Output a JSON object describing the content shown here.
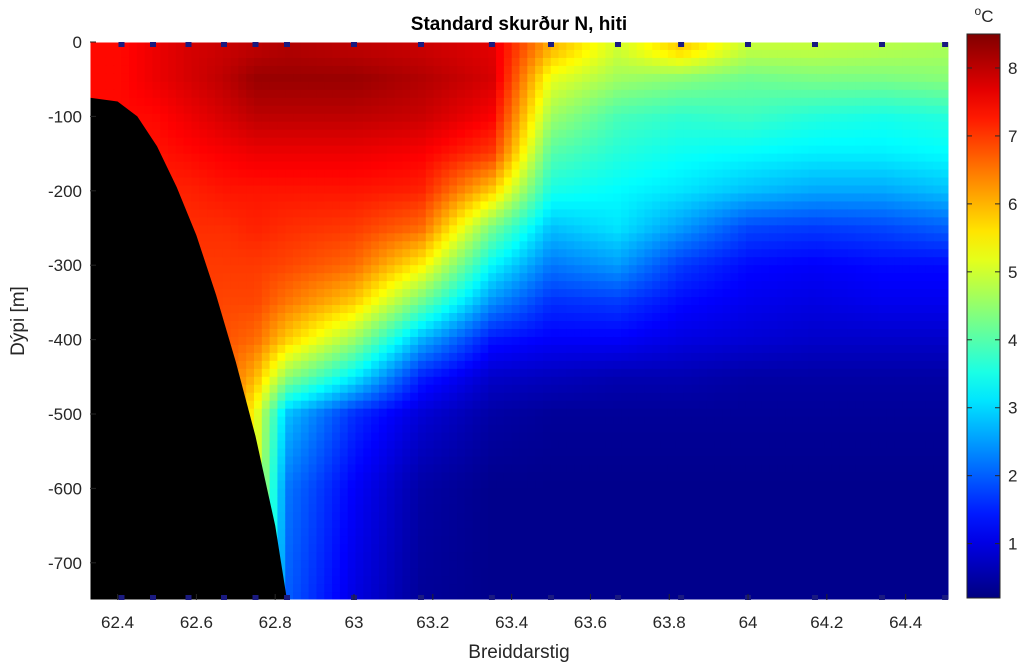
{
  "chart_data": {
    "type": "heatmap",
    "title": "Standard skurður N, hiti",
    "xlabel": "Breiddarstig",
    "ylabel": "Dýpi [m]",
    "colorbar_label": "°C",
    "xlim": [
      62.33,
      64.51
    ],
    "ylim": [
      -750,
      0
    ],
    "clim": [
      0.2,
      8.5
    ],
    "colormap": "jet",
    "x_ticks": [
      62.4,
      62.6,
      62.8,
      63,
      63.2,
      63.4,
      63.6,
      63.8,
      64,
      64.2,
      64.4
    ],
    "x_tick_labels": [
      "62.4",
      "62.6",
      "62.8",
      "63",
      "63.2",
      "63.4",
      "63.6",
      "63.8",
      "64",
      "64.2",
      "64.4"
    ],
    "y_ticks": [
      0,
      -100,
      -200,
      -300,
      -400,
      -500,
      -600,
      -700
    ],
    "y_tick_labels": [
      "0",
      "-100",
      "-200",
      "-300",
      "-400",
      "-500",
      "-600",
      "-700"
    ],
    "colorbar_ticks": [
      1,
      2,
      3,
      4,
      5,
      6,
      7,
      8
    ],
    "colorbar_tick_labels": [
      "1",
      "2",
      "3",
      "4",
      "5",
      "6",
      "7",
      "8"
    ],
    "stations_lat": [
      62.33,
      62.41,
      62.49,
      62.58,
      62.67,
      62.75,
      62.83,
      63.0,
      63.17,
      63.35,
      63.5,
      63.67,
      63.83,
      64.0,
      64.17,
      64.34,
      64.5
    ],
    "depths_m": [
      0,
      10,
      50,
      100,
      150,
      200,
      250,
      300,
      350,
      400,
      450,
      500,
      600,
      750
    ],
    "temperature_c": [
      [
        7.4,
        7.4,
        7.6,
        7.8,
        7.9,
        8.0,
        8.1,
        8.0,
        7.9,
        7.7,
        6.0,
        5.0,
        5.8,
        4.9,
        4.9,
        4.8,
        4.7
      ],
      [
        7.4,
        7.4,
        7.6,
        7.8,
        7.9,
        8.0,
        8.1,
        8.0,
        7.9,
        7.7,
        6.0,
        5.0,
        5.8,
        4.9,
        4.9,
        4.8,
        4.7
      ],
      [
        7.4,
        7.4,
        7.6,
        7.8,
        8.0,
        8.3,
        8.3,
        8.3,
        8.1,
        7.8,
        5.2,
        4.6,
        4.4,
        4.2,
        4.3,
        4.3,
        4.4
      ],
      [
        7.4,
        7.4,
        7.4,
        7.6,
        7.8,
        8.0,
        8.0,
        8.0,
        7.9,
        7.5,
        4.6,
        3.9,
        3.7,
        3.8,
        3.6,
        3.5,
        3.6
      ],
      [
        7.4,
        7.4,
        7.3,
        7.4,
        7.5,
        7.6,
        7.6,
        7.6,
        7.5,
        7.0,
        4.0,
        3.6,
        3.4,
        3.3,
        3.2,
        3.2,
        3.3
      ],
      [
        7.4,
        7.4,
        7.2,
        7.2,
        7.3,
        7.3,
        7.3,
        7.3,
        7.2,
        5.8,
        3.5,
        3.3,
        3.1,
        2.8,
        2.6,
        2.6,
        2.8
      ],
      [
        7.4,
        7.4,
        7.1,
        7.1,
        7.1,
        7.2,
        7.1,
        7.0,
        6.6,
        4.3,
        2.8,
        3.1,
        2.5,
        1.8,
        1.7,
        1.8,
        2.0
      ],
      [
        7.4,
        7.4,
        7.1,
        7.0,
        7.0,
        7.0,
        6.9,
        6.6,
        5.5,
        3.3,
        2.2,
        2.5,
        1.7,
        1.3,
        1.2,
        1.3,
        1.3
      ],
      [
        7.4,
        7.4,
        7.1,
        7.0,
        6.9,
        6.9,
        6.5,
        5.8,
        4.2,
        2.4,
        1.6,
        1.7,
        1.3,
        1.1,
        1.0,
        1.1,
        1.1
      ],
      [
        7.4,
        7.4,
        7.1,
        7.0,
        6.8,
        6.6,
        5.8,
        4.6,
        2.7,
        1.4,
        1.2,
        1.2,
        1.0,
        0.9,
        0.8,
        0.8,
        0.8
      ],
      [
        7.4,
        7.4,
        7.1,
        7.0,
        6.7,
        6.0,
        4.5,
        3.2,
        1.5,
        0.8,
        0.7,
        0.6,
        0.6,
        0.5,
        0.5,
        0.5,
        0.5
      ],
      [
        7.4,
        7.4,
        7.1,
        7.0,
        6.7,
        5.3,
        2.8,
        1.6,
        0.9,
        0.5,
        0.4,
        0.4,
        0.4,
        0.4,
        0.4,
        0.4,
        0.4
      ],
      [
        7.4,
        7.4,
        7.1,
        7.0,
        6.7,
        5.3,
        2.2,
        1.2,
        0.5,
        0.3,
        0.3,
        0.3,
        0.3,
        0.3,
        0.3,
        0.3,
        0.3
      ],
      [
        7.4,
        7.4,
        7.1,
        7.0,
        6.7,
        5.3,
        2.0,
        1.0,
        0.4,
        0.3,
        0.3,
        0.3,
        0.3,
        0.3,
        0.3,
        0.3,
        0.3
      ]
    ],
    "seafloor": {
      "lat": [
        62.33,
        62.4,
        62.45,
        62.5,
        62.55,
        62.6,
        62.65,
        62.7,
        62.75,
        62.8,
        62.83
      ],
      "depth_m": [
        -75,
        -80,
        -100,
        -140,
        -195,
        -260,
        -340,
        -430,
        -530,
        -650,
        -750
      ]
    },
    "grid": false
  }
}
